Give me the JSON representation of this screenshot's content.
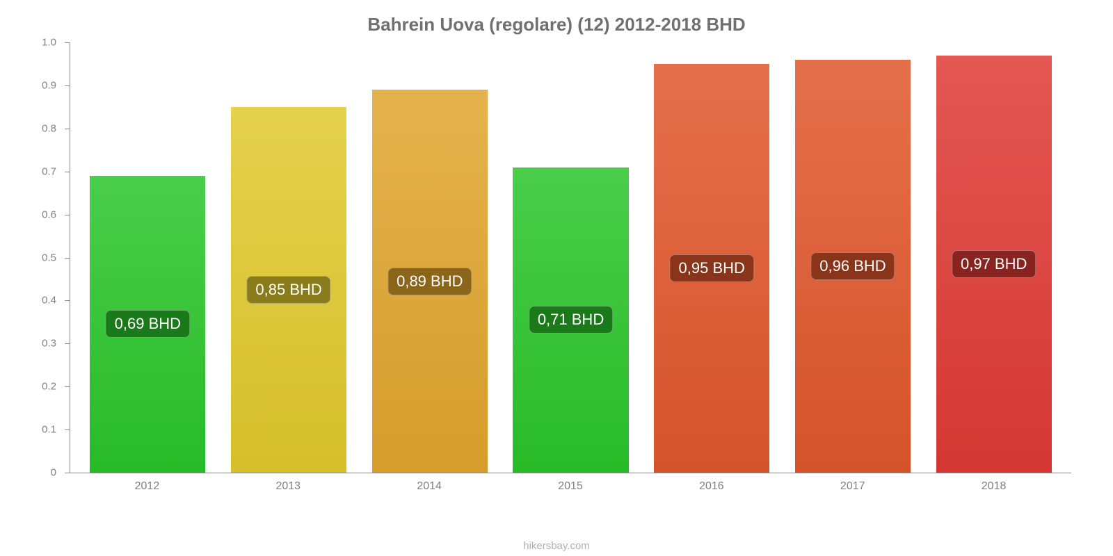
{
  "chart": {
    "type": "bar",
    "title": "Bahrein Uova (regolare) (12) 2012-2018 BHD",
    "title_color": "#707070",
    "title_fontsize": 26,
    "background_color": "#ffffff",
    "axis_color": "#888888",
    "label_color": "#808080",
    "label_fontsize": 15,
    "credit": "hikersbay.com",
    "credit_color": "#b0b0b0",
    "ylim": [
      0,
      1.0
    ],
    "yticks": [
      {
        "v": 0,
        "label": "0"
      },
      {
        "v": 0.1,
        "label": "0.1"
      },
      {
        "v": 0.2,
        "label": "0.2"
      },
      {
        "v": 0.3,
        "label": "0.3"
      },
      {
        "v": 0.4,
        "label": "0.4"
      },
      {
        "v": 0.5,
        "label": "0.5"
      },
      {
        "v": 0.6,
        "label": "0.6"
      },
      {
        "v": 0.7,
        "label": "0.7"
      },
      {
        "v": 0.8,
        "label": "0.8"
      },
      {
        "v": 0.9,
        "label": "0.9"
      },
      {
        "v": 1.0,
        "label": "1.0"
      }
    ],
    "bar_width": 0.82,
    "categories": [
      "2012",
      "2013",
      "2014",
      "2015",
      "2016",
      "2017",
      "2018"
    ],
    "values": [
      0.69,
      0.85,
      0.89,
      0.71,
      0.95,
      0.96,
      0.97
    ],
    "value_labels": [
      "0,69 BHD",
      "0,85 BHD",
      "0,89 BHD",
      "0,71 BHD",
      "0,95 BHD",
      "0,96 BHD",
      "0,97 BHD"
    ],
    "bar_colors": [
      "#2ac52a",
      "#e0c92d",
      "#e0a52d",
      "#2ac52a",
      "#e0572c",
      "#e0572c",
      "#df3a35"
    ],
    "badge_colors": [
      "#1a7a1a",
      "#8a7b1a",
      "#8a651a",
      "#1a7a1a",
      "#8a351a",
      "#8a351a",
      "#892320"
    ],
    "badge_text_color": "#ffffff",
    "badge_fontsize": 22
  }
}
